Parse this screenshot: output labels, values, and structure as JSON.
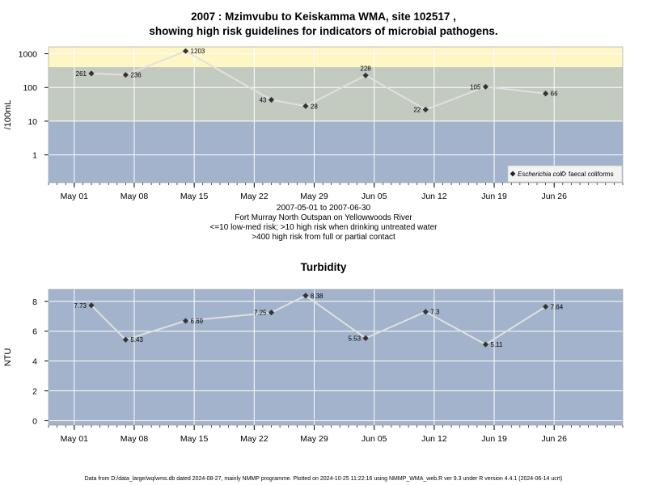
{
  "title_line1": "2007 : Mzimvubu to Keiskamma WMA, site 102517 ,",
  "title_line2": "showing high risk guidelines for indicators of microbial pathogens.",
  "caption_lines": [
    "2007-05-01 to 2007-06-30",
    "Fort Murray North Outspan on Yellowwoods River",
    "<=10 low-med risk; >10 high risk when drinking untreated water",
    ">400 high risk from full or partial contact"
  ],
  "footer": "Data from D:/data_large/wq/wms.db dated 2024-08-27, mainly NMMP programme. Plotted on 2024-10-25 11:22:16 using NMMP_WMA_web.R ver 9.3 under R version 4.4.1 (2024-06-14 ucrt)",
  "colors": {
    "panel_bg": "#a2b3cb",
    "band_mid": "#c3cbc1",
    "band_high": "#fff6c6",
    "line": "#e0e0e0",
    "point": "#333333"
  },
  "chart_data": [
    {
      "type": "line",
      "title": "",
      "ylabel": "/100mL",
      "xlabel": "",
      "y_scale": "log",
      "ylim": [
        0.15,
        1600
      ],
      "yticks": [
        1,
        10,
        100,
        1000
      ],
      "ytick_labels": [
        "1",
        "10",
        "100",
        "1000"
      ],
      "xlim": [
        "2007-04-28",
        "2007-07-04"
      ],
      "xticks": [
        "2007-05-01",
        "2007-05-08",
        "2007-05-15",
        "2007-05-22",
        "2007-05-29",
        "2007-06-05",
        "2007-06-12",
        "2007-06-19",
        "2007-06-26"
      ],
      "xtick_labels": [
        "May 01",
        "May 08",
        "May 15",
        "May 22",
        "May 29",
        "Jun 05",
        "Jun 12",
        "Jun 19",
        "Jun 26"
      ],
      "bands": [
        {
          "from": 0.15,
          "to": 10,
          "color": "#a2b3cb"
        },
        {
          "from": 10,
          "to": 400,
          "color": "#c3cbc1"
        },
        {
          "from": 400,
          "to": 1600,
          "color": "#fff6c6"
        }
      ],
      "grid": true,
      "legend_position": "bottom-right",
      "legend": [
        {
          "label": "Escherichia coli",
          "marker": "filled-diamond",
          "italic": true
        },
        {
          "label": "faecal coliforms",
          "marker": "open-diamond",
          "italic": false
        }
      ],
      "series": [
        {
          "name": "Escherichia coli",
          "x": [
            "2007-05-03",
            "2007-05-07",
            "2007-05-14",
            "2007-05-24",
            "2007-05-28",
            "2007-06-04",
            "2007-06-11",
            "2007-06-18",
            "2007-06-25"
          ],
          "y": [
            261,
            236,
            1203,
            43,
            28,
            228,
            22,
            105,
            66
          ],
          "labels": [
            "261",
            "236",
            "1203",
            "43",
            "28",
            "228",
            "22",
            "105",
            "66"
          ],
          "label_side": [
            "left",
            "right",
            "right",
            "left",
            "right",
            "top",
            "left",
            "left",
            "right"
          ]
        }
      ]
    },
    {
      "type": "line",
      "title": "Turbidity",
      "ylabel": "NTU",
      "xlabel": "",
      "y_scale": "linear",
      "ylim": [
        -0.3,
        8.8
      ],
      "yticks": [
        0,
        2,
        4,
        6,
        8
      ],
      "ytick_labels": [
        "0",
        "2",
        "4",
        "6",
        "8"
      ],
      "xlim": [
        "2007-04-28",
        "2007-07-04"
      ],
      "xticks": [
        "2007-05-01",
        "2007-05-08",
        "2007-05-15",
        "2007-05-22",
        "2007-05-29",
        "2007-06-05",
        "2007-06-12",
        "2007-06-19",
        "2007-06-26"
      ],
      "xtick_labels": [
        "May 01",
        "May 08",
        "May 15",
        "May 22",
        "May 29",
        "Jun 05",
        "Jun 12",
        "Jun 19",
        "Jun 26"
      ],
      "grid": true,
      "series": [
        {
          "name": "",
          "x": [
            "2007-05-03",
            "2007-05-07",
            "2007-05-14",
            "2007-05-24",
            "2007-05-28",
            "2007-06-04",
            "2007-06-11",
            "2007-06-18",
            "2007-06-25"
          ],
          "y": [
            7.73,
            5.43,
            6.69,
            7.25,
            8.38,
            5.53,
            7.3,
            5.11,
            7.64
          ],
          "labels": [
            "7.73",
            "5.43",
            "6.69",
            "7.25",
            "8.38",
            "5.53",
            "7.3",
            "5.11",
            "7.64"
          ],
          "label_side": [
            "left",
            "right",
            "right",
            "left",
            "right",
            "left",
            "right",
            "right",
            "right"
          ]
        }
      ]
    }
  ]
}
